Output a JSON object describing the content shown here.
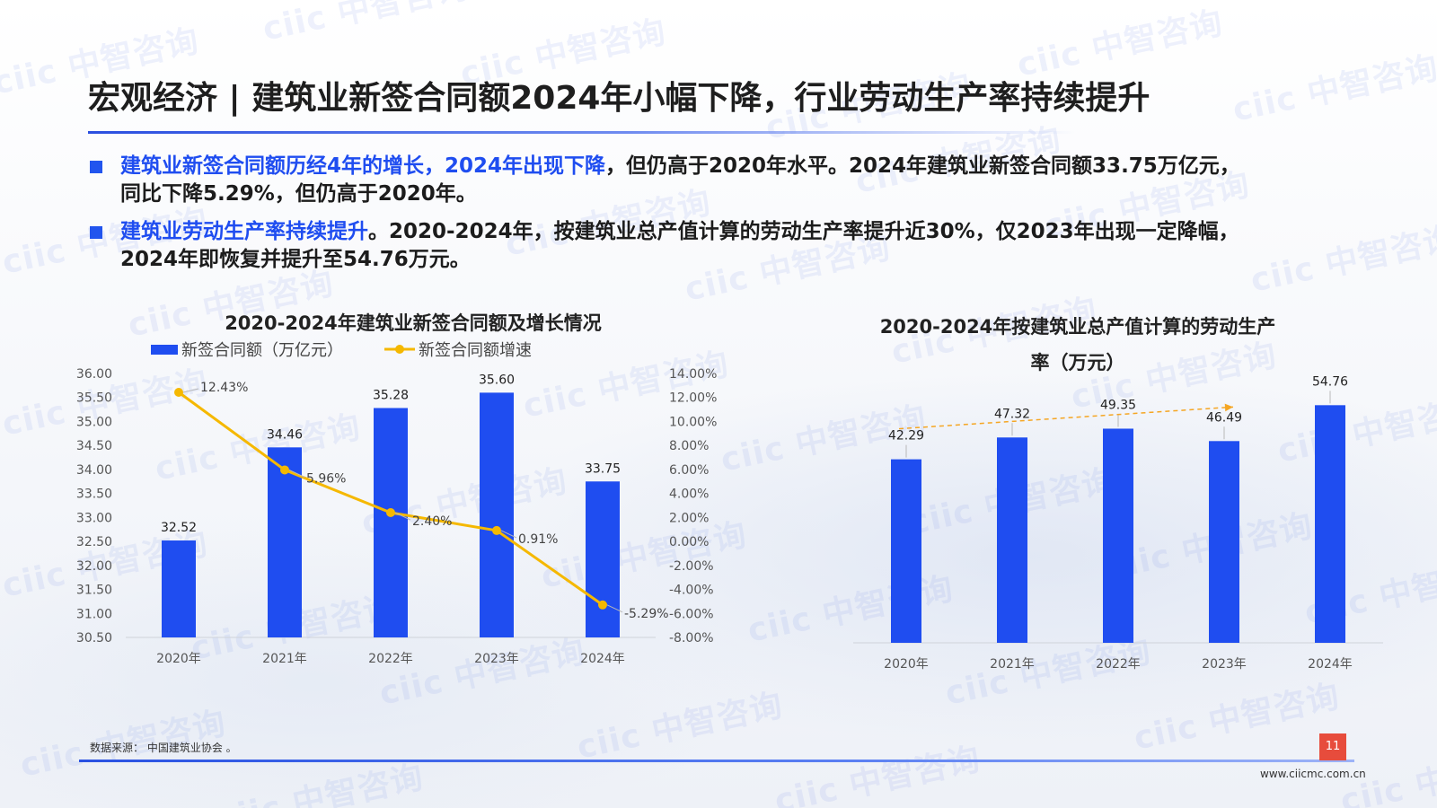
{
  "page": {
    "title": "宏观经济 | 建筑业新签合同额2024年小幅下降，行业劳动生产率持续提升",
    "bullets": [
      {
        "highlight": "建筑业新签合同额历经4年的增长，2024年出现下降",
        "line1_rest": "，但仍高于2020年水平。2024年建筑业新签合同额33.75万亿元，",
        "line2": "同比下降5.29%，但仍高于2020年。"
      },
      {
        "highlight": "建筑业劳动生产率持续提升",
        "line1_rest": "。2020-2024年，按建筑业总产值计算的劳动生产率提升近30%，仅2023年出现一定降幅，",
        "line2": "2024年即恢复并提升至54.76万元。"
      }
    ],
    "source": "数据来源： 中国建筑业协会 。",
    "page_number": "11",
    "website": "www.ciicmc.com.cn",
    "watermark": "ciic 中智咨询",
    "colors": {
      "accent": "#1f4df0",
      "bar": "#1f4df0",
      "line": "#f5b800",
      "page_badge": "#e74c3c"
    }
  },
  "chart_data": [
    {
      "type": "bar+line",
      "title": "2020-2024年建筑业新签合同额及增长情况",
      "categories": [
        "2020年",
        "2021年",
        "2022年",
        "2023年",
        "2024年"
      ],
      "series": [
        {
          "name": "新签合同额（万亿元）",
          "type": "bar",
          "axis": "left",
          "values": [
            32.52,
            34.46,
            35.28,
            35.6,
            33.75
          ],
          "labels": [
            "32.52",
            "34.46",
            "35.28",
            "35.60",
            "33.75"
          ]
        },
        {
          "name": "新签合同额增速",
          "type": "line",
          "axis": "right",
          "values": [
            12.43,
            5.96,
            2.4,
            0.91,
            -5.29
          ],
          "labels": [
            "12.43%",
            "5.96%",
            "2.40%",
            "0.91%",
            "-5.29%"
          ]
        }
      ],
      "y_left": {
        "min": 30.5,
        "max": 36.0,
        "step": 0.5,
        "ticks": [
          "36.00",
          "35.50",
          "35.00",
          "34.50",
          "34.00",
          "33.50",
          "33.00",
          "32.50",
          "32.00",
          "31.50",
          "31.00",
          "30.50"
        ]
      },
      "y_right": {
        "min": -8,
        "max": 14,
        "step": 2,
        "ticks": [
          "14.00%",
          "12.00%",
          "10.00%",
          "8.00%",
          "6.00%",
          "4.00%",
          "2.00%",
          "0.00%",
          "-2.00%",
          "-4.00%",
          "-6.00%",
          "-8.00%"
        ]
      },
      "legend": "top-left",
      "grid": false
    },
    {
      "type": "bar",
      "title": "2020-2024年按建筑业总产值计算的劳动生产率（万元）",
      "title_lines": [
        "2020-2024年按建筑业总产值计算的劳动生产",
        "率（万元）"
      ],
      "categories": [
        "2020年",
        "2021年",
        "2022年",
        "2023年",
        "2024年"
      ],
      "values": [
        42.29,
        47.32,
        49.35,
        46.49,
        54.76
      ],
      "labels": [
        "42.29",
        "47.32",
        "49.35",
        "46.49",
        "54.76"
      ],
      "ylim": [
        0,
        60
      ],
      "trend_arrow": true,
      "grid": false
    }
  ]
}
